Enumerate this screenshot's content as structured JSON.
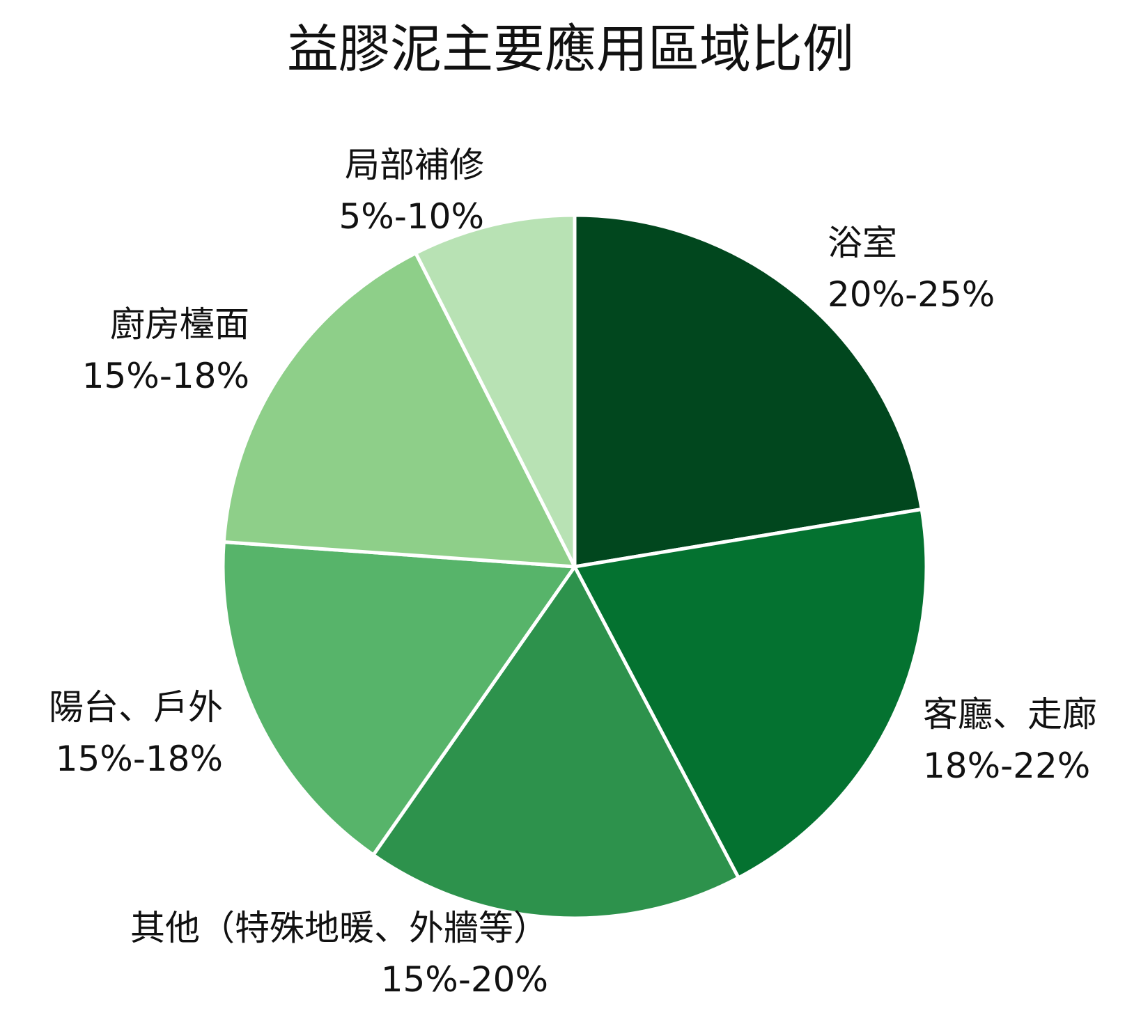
{
  "chart_data": {
    "type": "pie",
    "title": "益膠泥主要應用區域比例",
    "start_angle_deg": 0,
    "direction": "clockwise",
    "slices": [
      {
        "name": "浴室",
        "range": "20%-25%",
        "value": 22.5,
        "color": "#01471e"
      },
      {
        "name": "客廳、走廊",
        "range": "18%-22%",
        "value": 20.0,
        "color": "#047230"
      },
      {
        "name": "其他（特殊地暖、外牆等）",
        "range": "15%-20%",
        "value": 17.5,
        "color": "#2d924c"
      },
      {
        "name": "陽台、戶外",
        "range": "15%-18%",
        "value": 16.5,
        "color": "#57b46a"
      },
      {
        "name": "廚房檯面",
        "range": "15%-18%",
        "value": 16.5,
        "color": "#8ecf89"
      },
      {
        "name": "局部補修",
        "range": "5%-10%",
        "value": 7.5,
        "color": "#b8e2b4"
      }
    ],
    "slice_border_color": "#ffffff",
    "legend": "none"
  }
}
